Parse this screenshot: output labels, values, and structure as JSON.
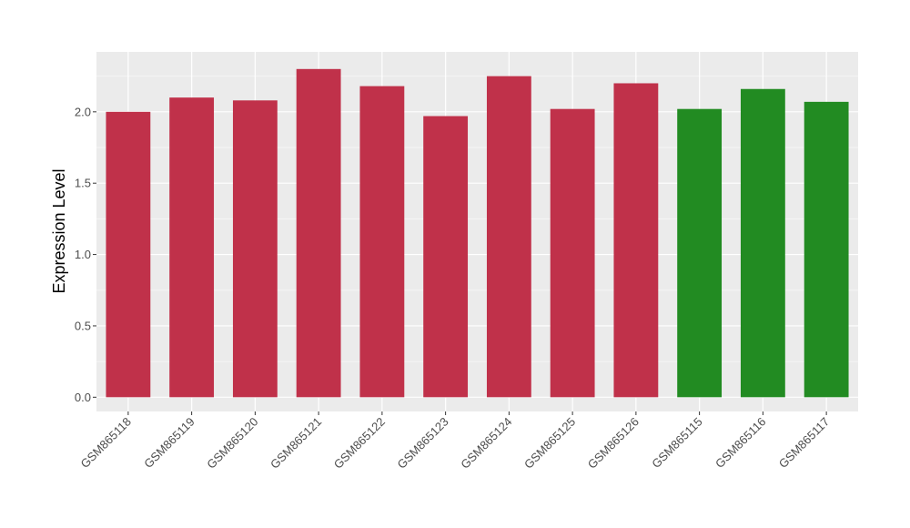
{
  "chart_data": {
    "type": "bar",
    "title": "",
    "xlabel": "",
    "ylabel": "Expression Level",
    "ylim": [
      -0.1,
      2.42
    ],
    "yticks": [
      0.0,
      0.5,
      1.0,
      1.5,
      2.0
    ],
    "ytick_labels": [
      "0.0",
      "0.5",
      "1.0",
      "1.5",
      "2.0"
    ],
    "grid": true,
    "legend": "none",
    "categories": [
      "GSM865118",
      "GSM865119",
      "GSM865120",
      "GSM865121",
      "GSM865122",
      "GSM865123",
      "GSM865124",
      "GSM865125",
      "GSM865126",
      "GSM865115",
      "GSM865116",
      "GSM865117"
    ],
    "values": [
      2.0,
      2.1,
      2.08,
      2.3,
      2.18,
      1.97,
      2.25,
      2.02,
      2.2,
      2.02,
      2.16,
      2.07
    ],
    "bar_colors": [
      "#c0314a",
      "#c0314a",
      "#c0314a",
      "#c0314a",
      "#c0314a",
      "#c0314a",
      "#c0314a",
      "#c0314a",
      "#c0314a",
      "#228b22",
      "#228b22",
      "#228b22"
    ]
  },
  "colors": {
    "panel_background": "#ebebeb",
    "grid_major": "#ffffff",
    "grid_minor": "#f5f5f5",
    "tick": "#333333"
  }
}
